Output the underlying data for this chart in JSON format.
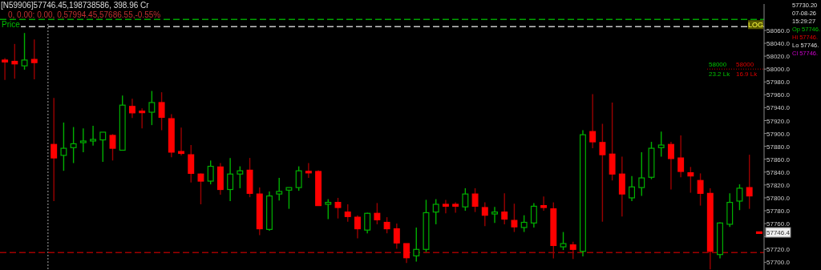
{
  "chart_data": {
    "type": "candlestick",
    "title": "[N59906]57746.45,198738586, 398.96 Cr",
    "subtitle": "0, 0.00: 0.00, 0,57994.45,57686.55,-0.55%",
    "ylabel": "Price",
    "categories": [
      null,
      null,
      null,
      null,
      null,
      null,
      null,
      null,
      null,
      null,
      null,
      null,
      null,
      null,
      null,
      null,
      null,
      null,
      null,
      null,
      null,
      null,
      null,
      null,
      null,
      null,
      null,
      null,
      null,
      null,
      null,
      null,
      null,
      null,
      null,
      null,
      null,
      null,
      null,
      null,
      null,
      null,
      null,
      null,
      null,
      null,
      null,
      null,
      null,
      null,
      null,
      null,
      null,
      null,
      null,
      null,
      null,
      null,
      null,
      null,
      null,
      null,
      null,
      null,
      null,
      null,
      null,
      null,
      null,
      null,
      null,
      null,
      null,
      null,
      null,
      null,
      null,
      null
    ],
    "ohlc": [
      [
        58014,
        58017,
        57983,
        58011
      ],
      [
        58012,
        58039,
        57985,
        58008
      ],
      [
        58005,
        58056,
        57999,
        58014
      ],
      [
        58015,
        58046,
        57984,
        58010
      ],
      null,
      [
        57883,
        57955,
        57795,
        57862
      ],
      [
        57866,
        57917,
        57842,
        57877
      ],
      [
        57878,
        57910,
        57854,
        57884
      ],
      [
        57886,
        57908,
        57871,
        57888
      ],
      [
        57889,
        57912,
        57881,
        57890
      ],
      [
        57890,
        57902,
        57856,
        57902
      ],
      [
        57897,
        57899,
        57858,
        57877
      ],
      [
        57874,
        57959,
        57874,
        57944
      ],
      [
        57942,
        57954,
        57924,
        57932
      ],
      [
        57934,
        57939,
        57908,
        57933
      ],
      [
        57933,
        57966,
        57913,
        57948
      ],
      [
        57948,
        57964,
        57905,
        57925
      ],
      [
        57923,
        57930,
        57863,
        57871
      ],
      [
        57872,
        57909,
        57866,
        57869
      ],
      [
        57867,
        57882,
        57824,
        57838
      ],
      [
        57837,
        57838,
        57790,
        57826
      ],
      [
        57826,
        57858,
        57821,
        57849
      ],
      [
        57848,
        57854,
        57805,
        57813
      ],
      [
        57813,
        57862,
        57795,
        57837
      ],
      [
        57837,
        57849,
        57815,
        57842
      ],
      [
        57843,
        57862,
        57801,
        57807
      ],
      [
        57806,
        57816,
        57742,
        57752
      ],
      [
        57751,
        57810,
        57749,
        57803
      ],
      [
        57806,
        57831,
        57796,
        57810
      ],
      [
        57812,
        57816,
        57783,
        57816
      ],
      [
        57816,
        57849,
        57811,
        57842
      ],
      [
        57841,
        57854,
        57831,
        57839
      ],
      [
        57841,
        57843,
        57788,
        57788
      ],
      [
        57790,
        57798,
        57767,
        57793
      ],
      [
        57793,
        57800,
        57768,
        57785
      ],
      [
        57778,
        57790,
        57763,
        57771
      ],
      [
        57770,
        57773,
        57737,
        57752
      ],
      [
        57750,
        57777,
        57745,
        57776
      ],
      [
        57776,
        57792,
        57759,
        57766
      ],
      [
        57762,
        57770,
        57745,
        57752
      ],
      [
        57752,
        57760,
        57721,
        57730
      ],
      [
        57729,
        57729,
        57699,
        57707
      ],
      [
        57710,
        57754,
        57701,
        57720
      ],
      [
        57720,
        57797,
        57716,
        57777
      ],
      [
        57778,
        57798,
        57759,
        57790
      ],
      [
        57790,
        57797,
        57776,
        57787
      ],
      [
        57790,
        57793,
        57777,
        57787
      ],
      [
        57786,
        57815,
        57780,
        57806
      ],
      [
        57806,
        57815,
        57778,
        57787
      ],
      [
        57785,
        57793,
        57756,
        57773
      ],
      [
        57775,
        57786,
        57761,
        57778
      ],
      [
        57778,
        57807,
        57759,
        57767
      ],
      [
        57765,
        57791,
        57747,
        57755
      ],
      [
        57754,
        57773,
        57747,
        57762
      ],
      [
        57761,
        57792,
        57754,
        57787
      ],
      [
        57788,
        57802,
        57780,
        57785
      ],
      [
        57783,
        57793,
        57706,
        57726
      ],
      [
        57724,
        57747,
        57719,
        57729
      ],
      [
        57727,
        57732,
        57705,
        57720
      ],
      [
        57717,
        57905,
        57709,
        57898
      ],
      [
        57903,
        57961,
        57877,
        57887
      ],
      [
        57886,
        57915,
        57763,
        57867
      ],
      [
        57868,
        57948,
        57827,
        57837
      ],
      [
        57837,
        57864,
        57771,
        57806
      ],
      [
        57800,
        57834,
        57795,
        57817
      ],
      [
        57816,
        57871,
        57803,
        57831
      ],
      [
        57832,
        57887,
        57829,
        57877
      ],
      [
        57878,
        57903,
        57864,
        57882
      ],
      [
        57883,
        57887,
        57813,
        57861
      ],
      [
        57862,
        57897,
        57832,
        57841
      ],
      [
        57839,
        57848,
        57808,
        57834
      ],
      [
        57827,
        57838,
        57788,
        57807
      ],
      [
        57807,
        57815,
        57689,
        57717
      ],
      [
        57712,
        57762,
        57706,
        57761
      ],
      [
        57759,
        57807,
        57755,
        57793
      ],
      [
        57795,
        57821,
        57781,
        57815
      ],
      [
        57816,
        57867,
        57783,
        57803
      ],
      [
        57746,
        57746,
        57746,
        57746
      ]
    ],
    "ylim": [
      57688,
      58101
    ],
    "yticks": [
      {
        "value": 57700,
        "label": "57700.0"
      },
      {
        "value": 57720,
        "label": "57720.0"
      },
      {
        "value": 57740,
        "label": null
      },
      {
        "value": 57760,
        "label": "57760.0"
      },
      {
        "value": 57780,
        "label": "57780.0"
      },
      {
        "value": 57800,
        "label": "57800.0"
      },
      {
        "value": 57820,
        "label": "57820.0"
      },
      {
        "value": 57840,
        "label": "57840.0"
      },
      {
        "value": 57860,
        "label": "57860.0"
      },
      {
        "value": 57880,
        "label": "57880.0"
      },
      {
        "value": 57900,
        "label": "57900.0"
      },
      {
        "value": 57920,
        "label": "57920.0"
      },
      {
        "value": 57940,
        "label": "57940.0"
      },
      {
        "value": 57960,
        "label": "57960.0"
      },
      {
        "value": 57980,
        "label": "57980.0"
      },
      {
        "value": 58000,
        "label": "58000.0"
      },
      {
        "value": 58020,
        "label": "58020.0"
      },
      {
        "value": 58040,
        "label": "58040.0"
      },
      {
        "value": 58060,
        "label": "58060.0"
      }
    ],
    "ref_lines": [
      {
        "axis": "y",
        "value": 57715,
        "color": "#a00000",
        "line_style": "dashed"
      },
      {
        "axis": "y",
        "value": 58066,
        "color": "#c8c8c8",
        "line_style": "dashed"
      },
      {
        "axis": "y",
        "value": 58077,
        "color": "#00a000",
        "line_style": "dashed",
        "label": "LOG"
      }
    ],
    "annotations": [
      {
        "text": "57746.4",
        "y": 57746.4
      },
      "58000",
      "58000",
      "23.2 Lk",
      "16.9 Lk",
      "57730.20",
      "07-08-26",
      "15:29:27",
      "Op 57746.",
      "Hi 57746.",
      "Lo 57746.",
      "Cl 57746."
    ],
    "grid": false
  }
}
